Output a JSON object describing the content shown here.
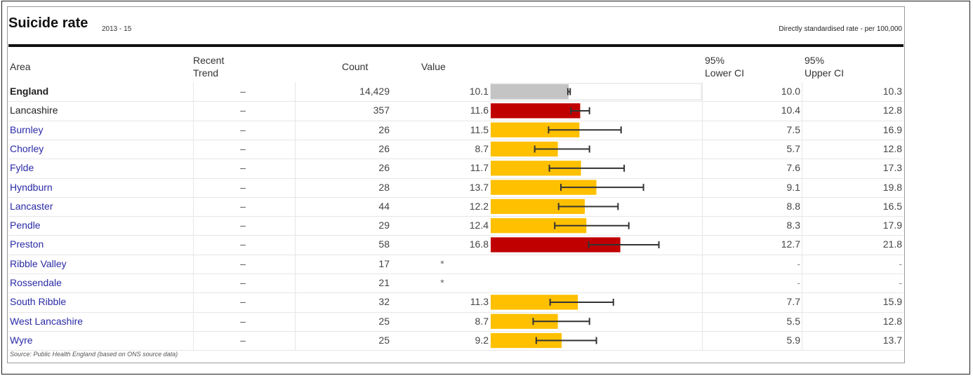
{
  "header": {
    "title": "Suicide rate",
    "period": "2013 - 15",
    "rate_note": "Directly standardised rate - per 100,000"
  },
  "columns": {
    "area": "Area",
    "trend_1": "Recent",
    "trend_2": "Trend",
    "count": "Count",
    "value": "Value",
    "lci_1": "95%",
    "lci_2": "Lower CI",
    "uci_1": "95%",
    "uci_2": "Upper CI"
  },
  "rows": [
    {
      "area": "England",
      "trend": "–",
      "count": "14,429",
      "value": "10.1",
      "lci": "10.0",
      "uci": "10.3",
      "link": false
    },
    {
      "area": "Lancashire",
      "trend": "–",
      "count": "357",
      "value": "11.6",
      "lci": "10.4",
      "uci": "12.8",
      "link": false
    },
    {
      "area": "Burnley",
      "trend": "–",
      "count": "26",
      "value": "11.5",
      "lci": "7.5",
      "uci": "16.9",
      "link": true
    },
    {
      "area": "Chorley",
      "trend": "–",
      "count": "26",
      "value": "8.7",
      "lci": "5.7",
      "uci": "12.8",
      "link": true
    },
    {
      "area": "Fylde",
      "trend": "–",
      "count": "26",
      "value": "11.7",
      "lci": "7.6",
      "uci": "17.3",
      "link": true
    },
    {
      "area": "Hyndburn",
      "trend": "–",
      "count": "28",
      "value": "13.7",
      "lci": "9.1",
      "uci": "19.8",
      "link": true
    },
    {
      "area": "Lancaster",
      "trend": "–",
      "count": "44",
      "value": "12.2",
      "lci": "8.8",
      "uci": "16.5",
      "link": true
    },
    {
      "area": "Pendle",
      "trend": "–",
      "count": "29",
      "value": "12.4",
      "lci": "8.3",
      "uci": "17.9",
      "link": true
    },
    {
      "area": "Preston",
      "trend": "–",
      "count": "58",
      "value": "16.8",
      "lci": "12.7",
      "uci": "21.8",
      "link": true
    },
    {
      "area": "Ribble Valley",
      "trend": "–",
      "count": "17",
      "value": "*",
      "lci": "-",
      "uci": "-",
      "link": true
    },
    {
      "area": "Rossendale",
      "trend": "–",
      "count": "21",
      "value": "*",
      "lci": "-",
      "uci": "-",
      "link": true
    },
    {
      "area": "South Ribble",
      "trend": "–",
      "count": "32",
      "value": "11.3",
      "lci": "7.7",
      "uci": "15.9",
      "link": true
    },
    {
      "area": "West Lancashire",
      "trend": "–",
      "count": "25",
      "value": "8.7",
      "lci": "5.5",
      "uci": "12.8",
      "link": true
    },
    {
      "area": "Wyre",
      "trend": "–",
      "count": "25",
      "value": "9.2",
      "lci": "5.9",
      "uci": "13.7",
      "link": true
    }
  ],
  "source_note": "Source: Public Health England (based on ONS source data)",
  "colors": {
    "england": "#c4c4c4",
    "worse": "#c00000",
    "similar": "#ffc000",
    "errorbar": "#333333"
  },
  "chart_data": {
    "type": "bar",
    "orientation": "horizontal",
    "title": "Suicide rate",
    "categories": [
      "England",
      "Lancashire",
      "Burnley",
      "Chorley",
      "Fylde",
      "Hyndburn",
      "Lancaster",
      "Pendle",
      "Preston",
      "Ribble Valley",
      "Rossendale",
      "South Ribble",
      "West Lancashire",
      "Wyre"
    ],
    "values": [
      10.1,
      11.6,
      11.5,
      8.7,
      11.7,
      13.7,
      12.2,
      12.4,
      16.8,
      null,
      null,
      11.3,
      8.7,
      9.2
    ],
    "lower_ci": [
      10.0,
      10.4,
      7.5,
      5.7,
      7.6,
      9.1,
      8.8,
      8.3,
      12.7,
      null,
      null,
      7.7,
      5.5,
      5.9
    ],
    "upper_ci": [
      10.3,
      12.8,
      16.9,
      12.8,
      17.3,
      19.8,
      16.5,
      17.9,
      21.8,
      null,
      null,
      15.9,
      12.8,
      13.7
    ],
    "bar_colors": [
      "#c4c4c4",
      "#c00000",
      "#ffc000",
      "#ffc000",
      "#ffc000",
      "#ffc000",
      "#ffc000",
      "#ffc000",
      "#c00000",
      null,
      null,
      "#ffc000",
      "#ffc000",
      "#ffc000"
    ],
    "xlim": [
      0,
      27.3
    ],
    "grid": false
  }
}
